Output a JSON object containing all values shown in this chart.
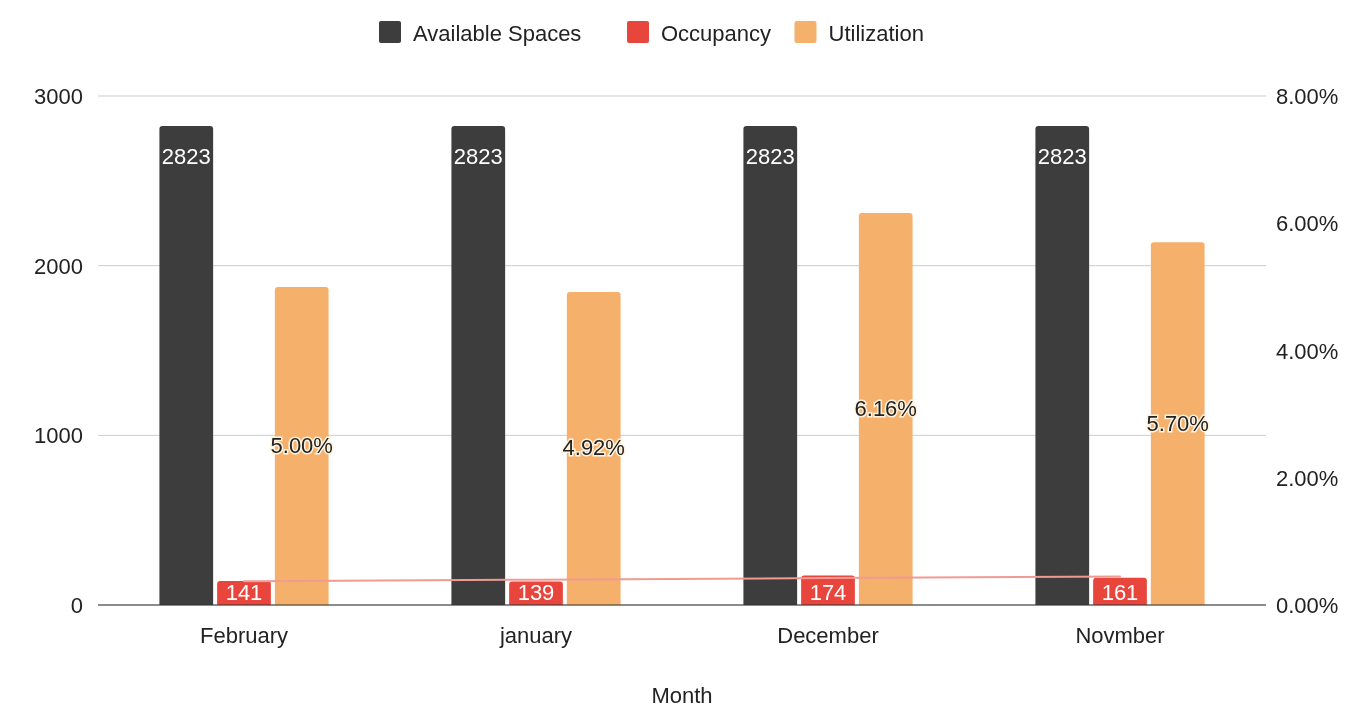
{
  "chart_data": {
    "type": "bar",
    "xlabel": "Month",
    "categories": [
      "February",
      "january",
      "December",
      "Novmber"
    ],
    "series": [
      {
        "name": "Available Spaces",
        "color": "#3d3d3d",
        "values": [
          2823,
          2823,
          2823,
          2823
        ],
        "value_labels": [
          "2823",
          "2823",
          "2823",
          "2823"
        ]
      },
      {
        "name": "Occupancy",
        "color": "#e8453c",
        "values": [
          141,
          139,
          174,
          161
        ],
        "value_labels": [
          "141",
          "139",
          "174",
          "161"
        ]
      },
      {
        "name": "Utilization",
        "color": "#f5b06b",
        "axis": "y2",
        "values": [
          5.0,
          4.92,
          6.16,
          5.7
        ],
        "value_labels": [
          "5.00%",
          "4.92%",
          "6.16%",
          "5.70%"
        ]
      },
      {
        "type": "line",
        "color": "#f19a94",
        "values": [
          140,
          149,
          159,
          168
        ]
      }
    ],
    "ylim": [
      0,
      3000
    ],
    "yticks": [
      0,
      1000,
      2000,
      3000
    ],
    "y2lim": [
      0,
      8
    ],
    "y2ticks": [
      {
        "value": 0,
        "label": "0.00%"
      },
      {
        "value": 2,
        "label": "2.00%"
      },
      {
        "value": 4,
        "label": "4.00%"
      },
      {
        "value": 6,
        "label": "6.00%"
      },
      {
        "value": 8,
        "label": "8.00%"
      }
    ],
    "grid": "y",
    "legend": "top"
  }
}
